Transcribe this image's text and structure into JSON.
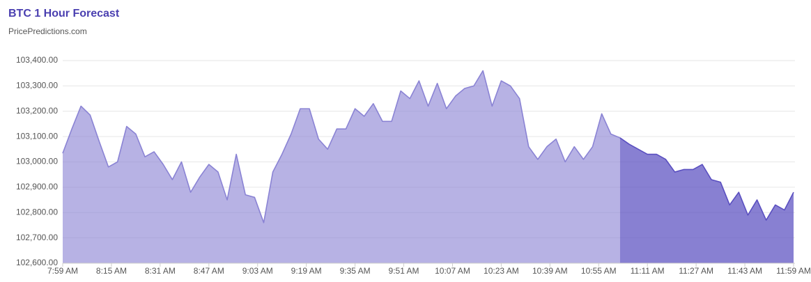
{
  "chart_data": {
    "type": "area",
    "title": "BTC 1 Hour Forecast",
    "subtitle": "PricePredictions.com",
    "x": [
      "7:59 AM",
      "8:02 AM",
      "8:05 AM",
      "8:08 AM",
      "8:11 AM",
      "8:14 AM",
      "8:17 AM",
      "8:20 AM",
      "8:23 AM",
      "8:26 AM",
      "8:29 AM",
      "8:32 AM",
      "8:35 AM",
      "8:38 AM",
      "8:41 AM",
      "8:44 AM",
      "8:47 AM",
      "8:50 AM",
      "8:53 AM",
      "8:56 AM",
      "8:59 AM",
      "9:02 AM",
      "9:05 AM",
      "9:08 AM",
      "9:11 AM",
      "9:14 AM",
      "9:17 AM",
      "9:20 AM",
      "9:23 AM",
      "9:26 AM",
      "9:29 AM",
      "9:32 AM",
      "9:35 AM",
      "9:38 AM",
      "9:41 AM",
      "9:44 AM",
      "9:47 AM",
      "9:50 AM",
      "9:53 AM",
      "9:56 AM",
      "9:59 AM",
      "10:02 AM",
      "10:05 AM",
      "10:08 AM",
      "10:11 AM",
      "10:14 AM",
      "10:17 AM",
      "10:20 AM",
      "10:23 AM",
      "10:26 AM",
      "10:29 AM",
      "10:32 AM",
      "10:35 AM",
      "10:38 AM",
      "10:41 AM",
      "10:44 AM",
      "10:47 AM",
      "10:50 AM",
      "10:53 AM",
      "10:56 AM",
      "10:59 AM",
      "11:02 AM",
      "11:05 AM",
      "11:08 AM",
      "11:11 AM",
      "11:14 AM",
      "11:17 AM",
      "11:20 AM",
      "11:23 AM",
      "11:26 AM",
      "11:29 AM",
      "11:32 AM",
      "11:35 AM",
      "11:38 AM",
      "11:41 AM",
      "11:44 AM",
      "11:47 AM",
      "11:50 AM",
      "11:53 AM",
      "11:56 AM",
      "11:59 AM"
    ],
    "series": [
      {
        "color": "#8a83d4",
        "values": [
          103034,
          103130,
          103220,
          103185,
          103080,
          102980,
          103000,
          103140,
          103110,
          103020,
          103040,
          102990,
          102930,
          103000,
          102880,
          102940,
          102990,
          102960,
          102850,
          103030,
          102870,
          102860,
          102760,
          102960,
          103030,
          103110,
          103210,
          103210,
          103090,
          103050,
          103130,
          103130,
          103210,
          103180,
          103230,
          103160,
          103160,
          103280,
          103250,
          103320,
          103220,
          103310,
          103210,
          103260,
          103290,
          103300,
          103360,
          103220,
          103320,
          103300,
          103250,
          103060,
          103010,
          103060,
          103090,
          103000,
          103060,
          103010,
          103060,
          103190,
          103110,
          103095,
          null,
          null,
          null,
          null,
          null,
          null,
          null,
          null,
          null,
          null,
          null,
          null,
          null,
          null,
          null,
          null,
          null,
          null,
          null
        ]
      },
      {
        "color": "#5a4fc0",
        "values": [
          null,
          null,
          null,
          null,
          null,
          null,
          null,
          null,
          null,
          null,
          null,
          null,
          null,
          null,
          null,
          null,
          null,
          null,
          null,
          null,
          null,
          null,
          null,
          null,
          null,
          null,
          null,
          null,
          null,
          null,
          null,
          null,
          null,
          null,
          null,
          null,
          null,
          null,
          null,
          null,
          null,
          null,
          null,
          null,
          null,
          null,
          null,
          null,
          null,
          null,
          null,
          null,
          null,
          null,
          null,
          null,
          null,
          null,
          null,
          null,
          null,
          103095,
          103070,
          103050,
          103030,
          103030,
          103010,
          102960,
          102970,
          102970,
          102990,
          102930,
          102920,
          102830,
          102880,
          102790,
          102850,
          102770,
          102830,
          102810,
          102880
        ]
      }
    ],
    "xlim": [
      "7:59 AM",
      "11:59 AM"
    ],
    "xticks": [
      "7:59 AM",
      "8:15 AM",
      "8:31 AM",
      "8:47 AM",
      "9:03 AM",
      "9:19 AM",
      "9:35 AM",
      "9:51 AM",
      "10:07 AM",
      "10:23 AM",
      "10:39 AM",
      "10:55 AM",
      "11:11 AM",
      "11:27 AM",
      "11:43 AM",
      "11:59 AM"
    ],
    "ylim": [
      102600,
      103400
    ],
    "yticks": [
      {
        "value": 102600,
        "label": "102,600.00"
      },
      {
        "value": 102700,
        "label": "102,700.00"
      },
      {
        "value": 102800,
        "label": "102,800.00"
      },
      {
        "value": 102900,
        "label": "102,900.00"
      },
      {
        "value": 103000,
        "label": "103,000.00"
      },
      {
        "value": 103100,
        "label": "103,100.00"
      },
      {
        "value": 103200,
        "label": "103,200.00"
      },
      {
        "value": 103300,
        "label": "103,300.00"
      },
      {
        "value": 103400,
        "label": "103,400.00"
      }
    ],
    "grid": true
  }
}
